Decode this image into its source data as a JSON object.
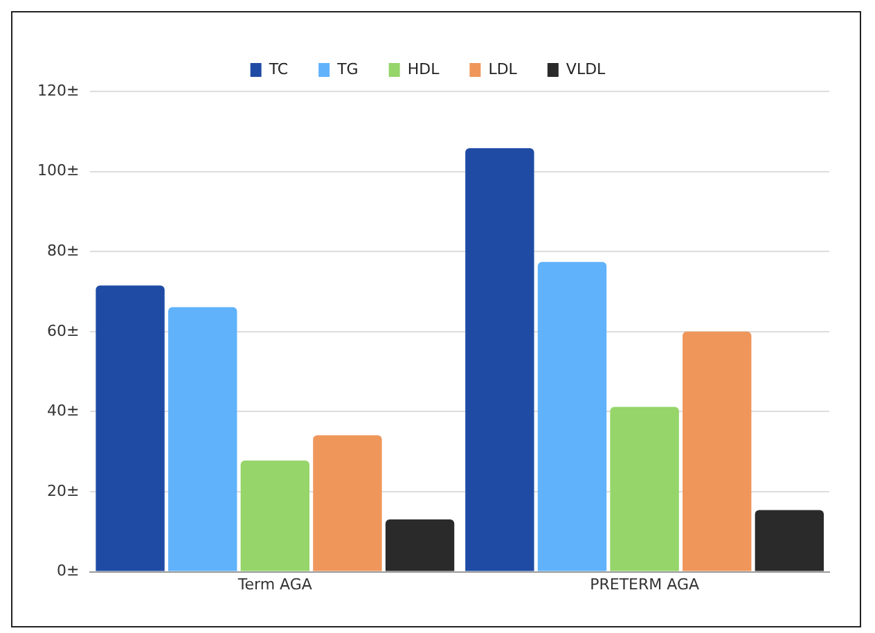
{
  "chart_data": {
    "type": "bar",
    "categories": [
      "Term AGA",
      "PRETERM AGA"
    ],
    "series": [
      {
        "name": "TC",
        "color": "#1f4ba5",
        "values": [
          71.5,
          105.8
        ]
      },
      {
        "name": "TG",
        "color": "#60b2fb",
        "values": [
          66.1,
          77.4
        ]
      },
      {
        "name": "HDL",
        "color": "#95d56a",
        "values": [
          27.8,
          41.2
        ]
      },
      {
        "name": "LDL",
        "color": "#ef965b",
        "values": [
          34.1,
          60
        ]
      },
      {
        "name": "VLDL",
        "color": "#2a2a2a",
        "values": [
          13.1,
          15.4
        ]
      }
    ],
    "ylim": [
      0,
      120
    ],
    "yticks": [
      {
        "value": 0,
        "label": "0±"
      },
      {
        "value": 20,
        "label": "20±"
      },
      {
        "value": 40,
        "label": "40±"
      },
      {
        "value": 60,
        "label": "60±"
      },
      {
        "value": 80,
        "label": "80±"
      },
      {
        "value": 100,
        "label": "100±"
      },
      {
        "value": 120,
        "label": "120±"
      }
    ],
    "grid": "y",
    "legend": "top"
  }
}
